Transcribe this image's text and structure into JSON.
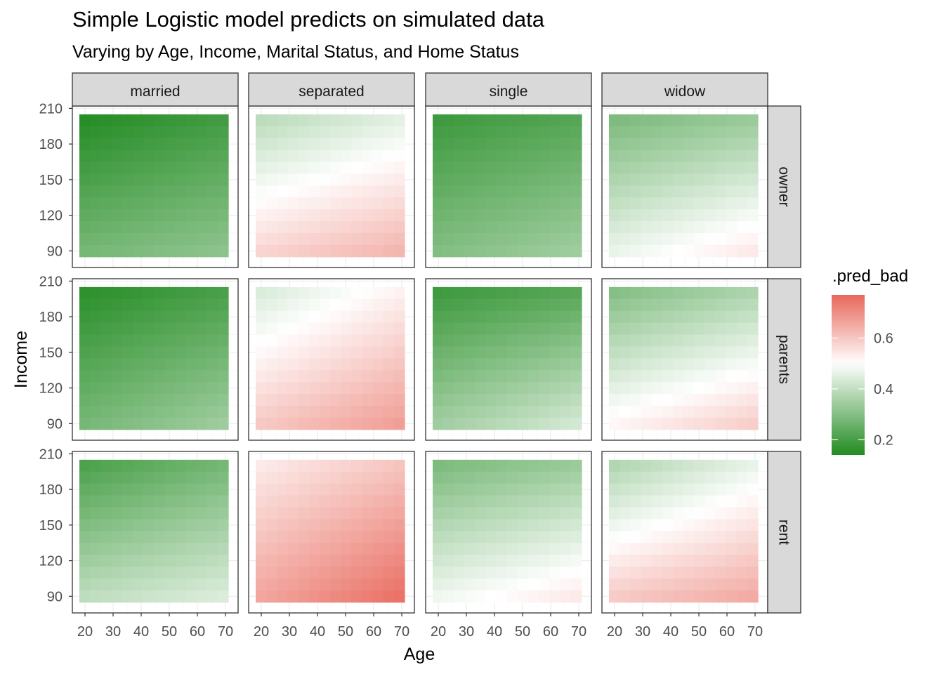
{
  "chart_data": {
    "type": "heatmap",
    "title": "Simple Logistic model predicts on simulated data",
    "subtitle": "Varying by Age, Income, Marital Status, and Home Status",
    "xlabel": "Age",
    "ylabel": "Income",
    "x_ticks": [
      20,
      30,
      40,
      50,
      60,
      70
    ],
    "y_ticks": [
      90,
      120,
      150,
      180,
      210
    ],
    "xlim": [
      15.5,
      74.5
    ],
    "ylim": [
      76,
      212
    ],
    "tile_x_range": [
      18,
      71
    ],
    "tile_y_range": [
      85,
      205
    ],
    "tile_rows": 12,
    "tile_cols": 14,
    "column_facet": {
      "values": [
        "married",
        "separated",
        "single",
        "widow"
      ]
    },
    "row_facet": {
      "values": [
        "owner",
        "parents",
        "rent"
      ]
    },
    "fill": {
      "legend_title": ".pred_bad",
      "legend_ticks": [
        0.2,
        0.4,
        0.6
      ],
      "limits": [
        0.14,
        0.77
      ],
      "midpoint": 0.5,
      "low_color": "#228B22",
      "mid_color": "#FFFFFF",
      "high_color": "#E8675A"
    },
    "panels": [
      {
        "row": "owner",
        "col": "married",
        "p_min_age_max_income": 0.14,
        "p_max_age_max_income": 0.19,
        "p_min_age_min_income": 0.28,
        "p_max_age_min_income": 0.32
      },
      {
        "row": "owner",
        "col": "separated",
        "p_min_age_max_income": 0.38,
        "p_max_age_max_income": 0.45,
        "p_min_age_min_income": 0.58,
        "p_max_age_min_income": 0.64
      },
      {
        "row": "owner",
        "col": "single",
        "p_min_age_max_income": 0.18,
        "p_max_age_max_income": 0.22,
        "p_min_age_min_income": 0.3,
        "p_max_age_min_income": 0.35
      },
      {
        "row": "owner",
        "col": "widow",
        "p_min_age_max_income": 0.28,
        "p_max_age_max_income": 0.33,
        "p_min_age_min_income": 0.47,
        "p_max_age_min_income": 0.55
      },
      {
        "row": "parents",
        "col": "married",
        "p_min_age_max_income": 0.15,
        "p_max_age_max_income": 0.2,
        "p_min_age_min_income": 0.28,
        "p_max_age_min_income": 0.35
      },
      {
        "row": "parents",
        "col": "separated",
        "p_min_age_max_income": 0.43,
        "p_max_age_max_income": 0.52,
        "p_min_age_min_income": 0.6,
        "p_max_age_min_income": 0.68
      },
      {
        "row": "parents",
        "col": "single",
        "p_min_age_max_income": 0.18,
        "p_max_age_max_income": 0.22,
        "p_min_age_min_income": 0.35,
        "p_max_age_min_income": 0.44
      },
      {
        "row": "parents",
        "col": "widow",
        "p_min_age_max_income": 0.29,
        "p_max_age_max_income": 0.36,
        "p_min_age_min_income": 0.52,
        "p_max_age_min_income": 0.6
      },
      {
        "row": "rent",
        "col": "married",
        "p_min_age_max_income": 0.2,
        "p_max_age_max_income": 0.27,
        "p_min_age_min_income": 0.4,
        "p_max_age_min_income": 0.45
      },
      {
        "row": "rent",
        "col": "separated",
        "p_min_age_max_income": 0.53,
        "p_max_age_max_income": 0.6,
        "p_min_age_min_income": 0.66,
        "p_max_age_min_income": 0.76
      },
      {
        "row": "rent",
        "col": "single",
        "p_min_age_max_income": 0.28,
        "p_max_age_max_income": 0.33,
        "p_min_age_min_income": 0.48,
        "p_max_age_min_income": 0.55
      },
      {
        "row": "rent",
        "col": "widow",
        "p_min_age_max_income": 0.36,
        "p_max_age_max_income": 0.46,
        "p_min_age_min_income": 0.6,
        "p_max_age_min_income": 0.66
      }
    ]
  }
}
